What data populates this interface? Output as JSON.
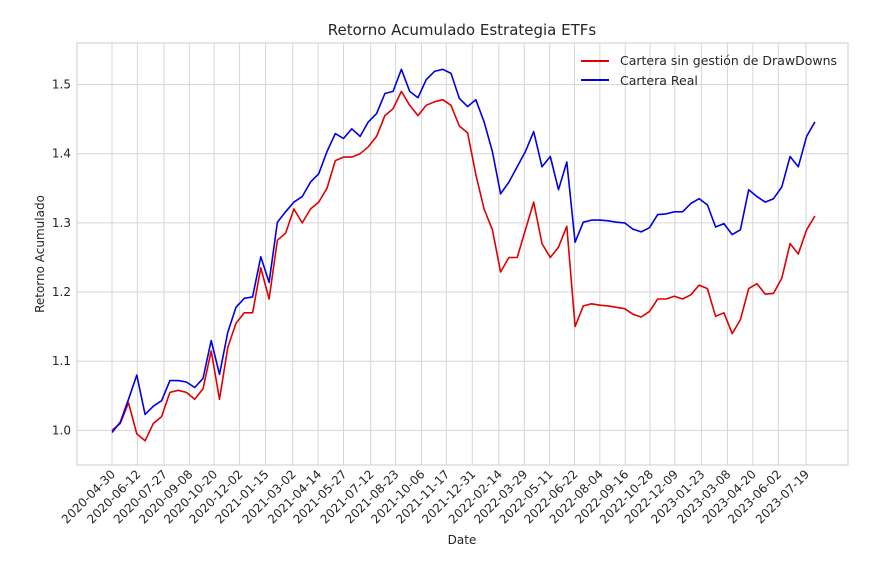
{
  "chart_data": {
    "type": "line",
    "title": "Retorno Acumulado Estrategia ETFs",
    "xlabel": "Date",
    "ylabel": "Retorno Acumulado",
    "ylim": [
      0.95,
      1.56
    ],
    "yticks": [
      1.0,
      1.1,
      1.2,
      1.3,
      1.4,
      1.5
    ],
    "ytick_labels": [
      "1.0",
      "1.1",
      "1.2",
      "1.3",
      "1.4",
      "1.5"
    ],
    "xtick_labels": [
      "2020-04-30",
      "2020-06-12",
      "2020-07-27",
      "2020-09-08",
      "2020-10-20",
      "2020-12-02",
      "2021-01-15",
      "2021-03-02",
      "2021-04-14",
      "2021-05-27",
      "2021-07-12",
      "2021-08-23",
      "2021-10-06",
      "2021-11-17",
      "2021-12-31",
      "2022-02-14",
      "2022-03-29",
      "2022-05-11",
      "2022-06-22",
      "2022-08-04",
      "2022-09-16",
      "2022-10-28",
      "2022-12-09",
      "2023-01-23",
      "2023-03-08",
      "2023-04-20",
      "2023-06-02",
      "2023-07-19"
    ],
    "grid": true,
    "legend_position": "top-right",
    "x_start": "2020-04-30",
    "x_step_days": 14,
    "series": [
      {
        "name": "Cartera sin gestión de DrawDowns",
        "color": "#e00000",
        "values": [
          1.0,
          1.01,
          1.04,
          0.995,
          0.985,
          1.01,
          1.02,
          1.055,
          1.058,
          1.055,
          1.045,
          1.06,
          1.115,
          1.045,
          1.12,
          1.155,
          1.17,
          1.17,
          1.235,
          1.19,
          1.275,
          1.285,
          1.32,
          1.3,
          1.32,
          1.33,
          1.35,
          1.39,
          1.395,
          1.395,
          1.4,
          1.41,
          1.425,
          1.455,
          1.465,
          1.49,
          1.47,
          1.455,
          1.47,
          1.475,
          1.478,
          1.47,
          1.44,
          1.43,
          1.37,
          1.32,
          1.29,
          1.229,
          1.25,
          1.25,
          1.29,
          1.33,
          1.27,
          1.25,
          1.265,
          1.295,
          1.15,
          1.18,
          1.183,
          1.181,
          1.18,
          1.178,
          1.176,
          1.168,
          1.164,
          1.172,
          1.19,
          1.19,
          1.194,
          1.19,
          1.196,
          1.21,
          1.205,
          1.165,
          1.17,
          1.14,
          1.16,
          1.205,
          1.212,
          1.197,
          1.198,
          1.22,
          1.27,
          1.255,
          1.29,
          1.31
        ]
      },
      {
        "name": "Cartera Real",
        "color": "#0000e6",
        "values": [
          0.997,
          1.012,
          1.045,
          1.08,
          1.023,
          1.035,
          1.043,
          1.072,
          1.072,
          1.07,
          1.062,
          1.075,
          1.13,
          1.081,
          1.142,
          1.178,
          1.191,
          1.193,
          1.251,
          1.214,
          1.301,
          1.316,
          1.33,
          1.338,
          1.359,
          1.371,
          1.403,
          1.429,
          1.422,
          1.436,
          1.425,
          1.446,
          1.458,
          1.487,
          1.49,
          1.522,
          1.49,
          1.481,
          1.507,
          1.519,
          1.522,
          1.516,
          1.48,
          1.468,
          1.478,
          1.446,
          1.403,
          1.342,
          1.359,
          1.381,
          1.403,
          1.432,
          1.381,
          1.396,
          1.348,
          1.388,
          1.272,
          1.301,
          1.304,
          1.304,
          1.303,
          1.301,
          1.3,
          1.291,
          1.287,
          1.293,
          1.312,
          1.313,
          1.316,
          1.316,
          1.328,
          1.335,
          1.326,
          1.294,
          1.299,
          1.283,
          1.29,
          1.348,
          1.338,
          1.33,
          1.335,
          1.352,
          1.396,
          1.381,
          1.425,
          1.446
        ]
      }
    ]
  }
}
